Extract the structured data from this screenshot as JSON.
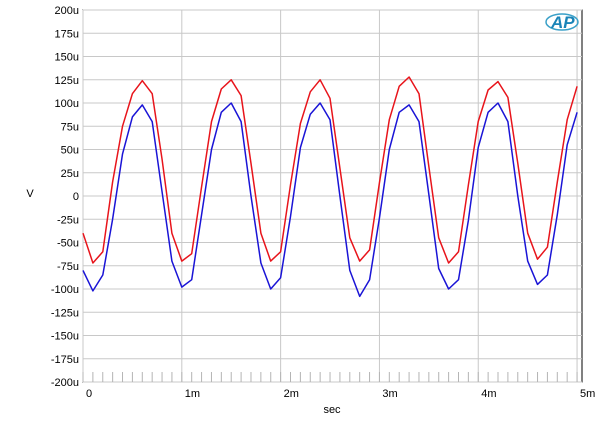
{
  "chart_data": {
    "type": "line",
    "title": "",
    "xlabel": "sec",
    "ylabel": "V",
    "xlim": [
      0,
      0.00505
    ],
    "ylim": [
      -0.0002,
      0.0002
    ],
    "grid": true,
    "x_ticks": [
      {
        "value": 0,
        "label": "0"
      },
      {
        "value": 0.001,
        "label": "1m"
      },
      {
        "value": 0.002,
        "label": "2m"
      },
      {
        "value": 0.003,
        "label": "3m"
      },
      {
        "value": 0.004,
        "label": "4m"
      },
      {
        "value": 0.005,
        "label": "5m"
      }
    ],
    "y_ticks": [
      {
        "value": 0.0002,
        "label": "200u"
      },
      {
        "value": 0.000175,
        "label": "175u"
      },
      {
        "value": 0.00015,
        "label": "150u"
      },
      {
        "value": 0.000125,
        "label": "125u"
      },
      {
        "value": 0.0001,
        "label": "100u"
      },
      {
        "value": 7.5e-05,
        "label": "75u"
      },
      {
        "value": 5e-05,
        "label": "50u"
      },
      {
        "value": 2.5e-05,
        "label": "25u"
      },
      {
        "value": 0,
        "label": "0"
      },
      {
        "value": -2.5e-05,
        "label": "-25u"
      },
      {
        "value": -5e-05,
        "label": "-50u"
      },
      {
        "value": -7.5e-05,
        "label": "-75u"
      },
      {
        "value": -0.0001,
        "label": "-100u"
      },
      {
        "value": -0.000125,
        "label": "-125u"
      },
      {
        "value": -0.00015,
        "label": "-150u"
      },
      {
        "value": -0.000175,
        "label": "-175u"
      },
      {
        "value": -0.0002,
        "label": "-200u"
      }
    ],
    "series": [
      {
        "color": "#e8141b",
        "x": [
          0,
          0.0001,
          0.0002,
          0.0003,
          0.0004,
          0.0005,
          0.0006,
          0.0007,
          0.0008,
          0.0009,
          0.001,
          0.0011,
          0.0012,
          0.0013,
          0.0014,
          0.0015,
          0.0016,
          0.0017,
          0.0018,
          0.0019,
          0.002,
          0.0021,
          0.0022,
          0.0023,
          0.0024,
          0.0025,
          0.0026,
          0.0027,
          0.0028,
          0.0029,
          0.003,
          0.0031,
          0.0032,
          0.0033,
          0.0034,
          0.0035,
          0.0036,
          0.0037,
          0.0038,
          0.0039,
          0.004,
          0.0041,
          0.0042,
          0.0043,
          0.0044,
          0.0045,
          0.0046,
          0.0047,
          0.0048,
          0.0049,
          0.005
        ],
        "y": [
          -4e-05,
          -7.2e-05,
          -6e-05,
          1.5e-05,
          7.5e-05,
          0.00011,
          0.000124,
          0.00011,
          4e-05,
          -4e-05,
          -7e-05,
          -6.2e-05,
          1e-05,
          8e-05,
          0.000115,
          0.000125,
          0.000108,
          3.5e-05,
          -4e-05,
          -7e-05,
          -6e-05,
          1.2e-05,
          7.8e-05,
          0.000112,
          0.000125,
          0.000105,
          3e-05,
          -4.5e-05,
          -7e-05,
          -5.8e-05,
          1.4e-05,
          8.2e-05,
          0.000118,
          0.000128,
          0.00011,
          3.2e-05,
          -4.5e-05,
          -7.2e-05,
          -6e-05,
          1.2e-05,
          8e-05,
          0.000114,
          0.000123,
          0.000106,
          3.5e-05,
          -4e-05,
          -6.8e-05,
          -5.5e-05,
          1.5e-05,
          8.2e-05,
          0.000118
        ]
      },
      {
        "color": "#1a14d6",
        "x": [
          0,
          0.0001,
          0.0002,
          0.0003,
          0.0004,
          0.0005,
          0.0006,
          0.0007,
          0.0008,
          0.0009,
          0.001,
          0.0011,
          0.0012,
          0.0013,
          0.0014,
          0.0015,
          0.0016,
          0.0017,
          0.0018,
          0.0019,
          0.002,
          0.0021,
          0.0022,
          0.0023,
          0.0024,
          0.0025,
          0.0026,
          0.0027,
          0.0028,
          0.0029,
          0.003,
          0.0031,
          0.0032,
          0.0033,
          0.0034,
          0.0035,
          0.0036,
          0.0037,
          0.0038,
          0.0039,
          0.004,
          0.0041,
          0.0042,
          0.0043,
          0.0044,
          0.0045,
          0.0046,
          0.0047,
          0.0048,
          0.0049,
          0.005
        ],
        "y": [
          -8e-05,
          -0.000102,
          -8.5e-05,
          -2.5e-05,
          4.5e-05,
          8.5e-05,
          9.8e-05,
          8e-05,
          5e-06,
          -7e-05,
          -9.8e-05,
          -9e-05,
          -2e-05,
          5e-05,
          9e-05,
          0.0001,
          8e-05,
          0.0,
          -7.2e-05,
          -0.0001,
          -8.8e-05,
          -2.2e-05,
          5.2e-05,
          8.8e-05,
          0.0001,
          8.2e-05,
          0.0,
          -8e-05,
          -0.000108,
          -9e-05,
          -2.4e-05,
          5e-05,
          9e-05,
          9.8e-05,
          8e-05,
          2e-06,
          -7.8e-05,
          -0.0001,
          -9e-05,
          -2.6e-05,
          5.2e-05,
          9e-05,
          0.0001,
          8e-05,
          0.0,
          -7e-05,
          -9.5e-05,
          -8.5e-05,
          -2e-05,
          5.5e-05,
          9e-05
        ]
      }
    ]
  }
}
